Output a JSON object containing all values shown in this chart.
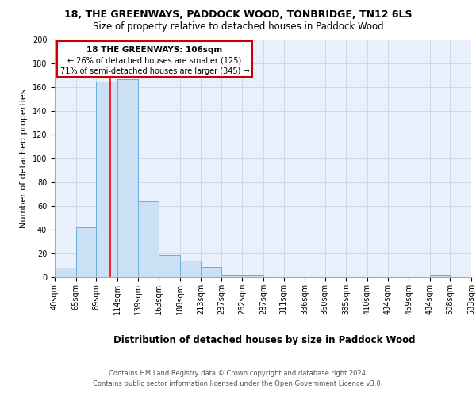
{
  "title1": "18, THE GREENWAYS, PADDOCK WOOD, TONBRIDGE, TN12 6LS",
  "title2": "Size of property relative to detached houses in Paddock Wood",
  "xlabel": "Distribution of detached houses by size in Paddock Wood",
  "ylabel": "Number of detached properties",
  "footer1": "Contains HM Land Registry data © Crown copyright and database right 2024.",
  "footer2": "Contains public sector information licensed under the Open Government Licence v3.0.",
  "annotation_line1": "18 THE GREENWAYS: 106sqm",
  "annotation_line2": "← 26% of detached houses are smaller (125)",
  "annotation_line3": "71% of semi-detached houses are larger (345) →",
  "bin_edges": [
    40,
    65,
    89,
    114,
    139,
    163,
    188,
    213,
    237,
    262,
    287,
    311,
    336,
    360,
    385,
    410,
    434,
    459,
    484,
    508,
    533
  ],
  "bar_heights": [
    8,
    42,
    165,
    167,
    64,
    19,
    14,
    9,
    2,
    2,
    0,
    0,
    0,
    0,
    0,
    0,
    0,
    0,
    2,
    0
  ],
  "bar_color": "#cce0f5",
  "bar_edge_color": "#6aaed6",
  "red_line_x": 106,
  "ylim": [
    0,
    200
  ],
  "yticks": [
    0,
    20,
    40,
    60,
    80,
    100,
    120,
    140,
    160,
    180,
    200
  ],
  "bg_color": "#e8f0fb",
  "annotation_box_color": "#cc0000",
  "grid_color": "#c8d4e8",
  "title1_fontsize": 9,
  "title2_fontsize": 8.5,
  "ylabel_fontsize": 8,
  "xlabel_fontsize": 8.5,
  "tick_fontsize": 7,
  "footer_fontsize": 6
}
